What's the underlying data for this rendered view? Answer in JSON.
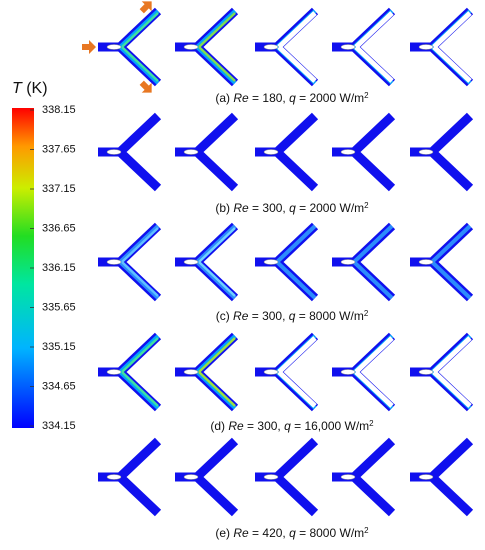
{
  "colorbar": {
    "title": [
      "T",
      " (K)"
    ],
    "ticks": [
      338.15,
      337.65,
      337.15,
      336.65,
      336.15,
      335.65,
      335.15,
      334.65,
      334.15
    ]
  },
  "rows": [
    {
      "caption": [
        "(a) ",
        "Re",
        " = 180, ",
        "q",
        " = 2000 W/m",
        "2"
      ]
    },
    {
      "caption": [
        "(b) ",
        "Re",
        " = 300, ",
        "q",
        " = 2000 W/m",
        "2"
      ]
    },
    {
      "caption": [
        "(c) ",
        "Re",
        " = 300, ",
        "q",
        " = 8000 W/m",
        "2"
      ]
    },
    {
      "caption": [
        "(d) ",
        "Re",
        " = 300, ",
        "q",
        " = 16,000 W/m",
        "2"
      ]
    },
    {
      "caption": [
        "(e) ",
        "Re",
        " = 420, ",
        "q",
        " = 8000 W/m",
        "2"
      ]
    }
  ]
}
